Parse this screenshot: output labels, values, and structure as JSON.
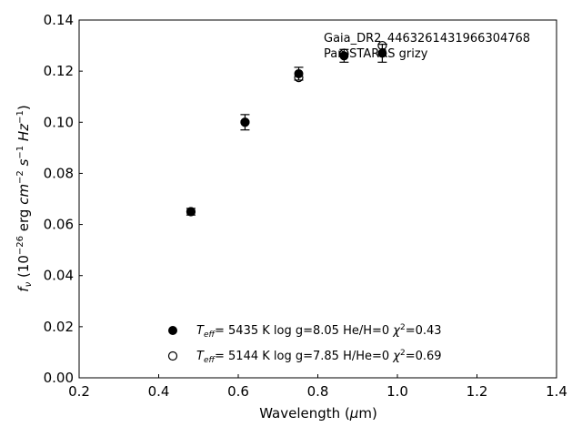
{
  "chart_data": {
    "type": "scatter",
    "xlabel": "Wavelength (μm)",
    "ylabel": "f_ν (10^-26 erg cm^-2 s^-1 Hz^-1)",
    "xlim": [
      0.2,
      1.4
    ],
    "ylim": [
      0.0,
      0.14
    ],
    "xticks": [
      0.2,
      0.4,
      0.6,
      0.8,
      1.0,
      1.2,
      1.4
    ],
    "xtick_labels": [
      "0.2",
      "0.4",
      "0.6",
      "0.8",
      "1.0",
      "1.2",
      "1.4"
    ],
    "yticks": [
      0.0,
      0.02,
      0.04,
      0.06,
      0.08,
      0.1,
      0.12,
      0.14
    ],
    "ytick_labels": [
      "0.00",
      "0.02",
      "0.04",
      "0.06",
      "0.08",
      "0.10",
      "0.12",
      "0.14"
    ],
    "grid": false,
    "annotations": [
      "Gaia_DR2_4463261431966304768",
      "Pan-STARRS grizy"
    ],
    "series": [
      {
        "marker": "filled-circle",
        "x": [
          0.481,
          0.617,
          0.752,
          0.866,
          0.962
        ],
        "y": [
          0.065,
          0.1,
          0.119,
          0.126,
          0.127
        ],
        "yerr": [
          0.0013,
          0.003,
          0.0025,
          0.0025,
          0.0035
        ],
        "errorbars": true
      },
      {
        "marker": "open-circle",
        "x": [
          0.481,
          0.617,
          0.752,
          0.866,
          0.962
        ],
        "y": [
          0.065,
          0.1,
          0.1175,
          0.127,
          0.13
        ],
        "errorbars": false
      }
    ],
    "legend": {
      "position": "lower-center",
      "entries": [
        {
          "marker": "filled-circle",
          "teff_label": "T_eff",
          "text": "= 5435 K  log g=8.05  He/H=0  χ²=0.43"
        },
        {
          "marker": "open-circle",
          "teff_label": "T_eff",
          "text": "= 5144 K  log g=7.85  H/He=0  χ²=0.69"
        }
      ]
    }
  }
}
